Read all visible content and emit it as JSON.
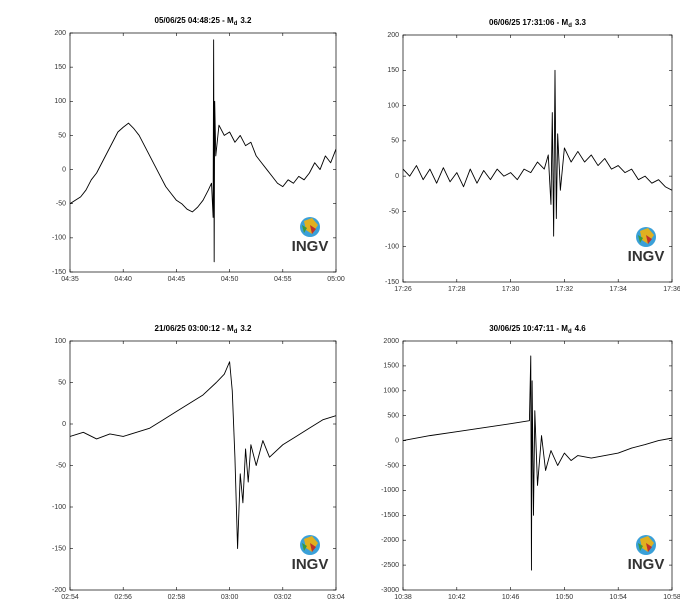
{
  "logo": "INGV",
  "chart_data": [
    {
      "type": "line",
      "title": "05/06/25 04:48:25 - M",
      "title_subscript": "d",
      "title_suffix": "3.2",
      "color": "#000000",
      "x": [
        275,
        275.5,
        276,
        276.5,
        277,
        277.5,
        278,
        278.5,
        279,
        279.5,
        280,
        280.5,
        281,
        281.5,
        282,
        282.5,
        283,
        283.5,
        284,
        284.5,
        285,
        285.5,
        286,
        286.5,
        287,
        287.5,
        288,
        288.3,
        288.45,
        288.5,
        288.55,
        288.6,
        288.7,
        289,
        289.5,
        290,
        290.5,
        291,
        291.5,
        292,
        292.5,
        293,
        293.5,
        294,
        294.5,
        295,
        295.5,
        296,
        296.5,
        297,
        297.5,
        298,
        298.5,
        299,
        299.5,
        300
      ],
      "values": [
        -50,
        -45,
        -40,
        -30,
        -15,
        -5,
        10,
        25,
        40,
        55,
        62,
        68,
        60,
        50,
        35,
        20,
        5,
        -10,
        -25,
        -35,
        -45,
        -50,
        -58,
        -62,
        -55,
        -45,
        -30,
        -20,
        -70,
        190,
        -135,
        100,
        20,
        65,
        50,
        55,
        40,
        50,
        35,
        40,
        20,
        10,
        0,
        -10,
        -20,
        -25,
        -15,
        -20,
        -10,
        -15,
        -5,
        10,
        0,
        20,
        10,
        30
      ],
      "xlim": [
        275,
        300
      ],
      "xticks": [
        {
          "value": 275,
          "label": "04:35"
        },
        {
          "value": 280,
          "label": "04:40"
        },
        {
          "value": 285,
          "label": "04:45"
        },
        {
          "value": 290,
          "label": "04:50"
        },
        {
          "value": 295,
          "label": "04:55"
        },
        {
          "value": 300,
          "label": "05:00"
        }
      ],
      "ylim": [
        -150,
        200
      ],
      "yticks": [
        -150,
        -100,
        -50,
        0,
        50,
        100,
        150,
        200
      ]
    },
    {
      "type": "line",
      "title": "06/06/25 17:31:06 - M",
      "title_subscript": "d",
      "title_suffix": "3.3",
      "color": "#000000",
      "x": [
        1046,
        1046.25,
        1046.5,
        1046.75,
        1047,
        1047.25,
        1047.5,
        1047.75,
        1048,
        1048.25,
        1048.5,
        1048.75,
        1049,
        1049.25,
        1049.5,
        1049.75,
        1050,
        1050.25,
        1050.5,
        1050.75,
        1051,
        1051.25,
        1051.4,
        1051.5,
        1051.55,
        1051.6,
        1051.65,
        1051.7,
        1051.75,
        1051.85,
        1052,
        1052.25,
        1052.5,
        1052.75,
        1053,
        1053.25,
        1053.5,
        1053.75,
        1054,
        1054.25,
        1054.5,
        1054.75,
        1055,
        1055.25,
        1055.5,
        1055.75,
        1056
      ],
      "values": [
        10,
        0,
        15,
        -5,
        10,
        -10,
        12,
        -8,
        5,
        -15,
        10,
        -10,
        8,
        -5,
        10,
        0,
        5,
        -5,
        10,
        5,
        20,
        10,
        30,
        -40,
        90,
        -85,
        150,
        -60,
        60,
        -20,
        40,
        20,
        35,
        20,
        30,
        15,
        25,
        10,
        15,
        5,
        10,
        -5,
        0,
        -10,
        -5,
        -15,
        -20
      ],
      "xlim": [
        1046,
        1056
      ],
      "xticks": [
        {
          "value": 1046,
          "label": "17:26"
        },
        {
          "value": 1048,
          "label": "17:28"
        },
        {
          "value": 1050,
          "label": "17:30"
        },
        {
          "value": 1052,
          "label": "17:32"
        },
        {
          "value": 1054,
          "label": "17:34"
        },
        {
          "value": 1056,
          "label": "17:36"
        }
      ],
      "ylim": [
        -150,
        200
      ],
      "yticks": [
        -150,
        -100,
        -50,
        0,
        50,
        100,
        150,
        200
      ]
    },
    {
      "type": "line",
      "title": "21/06/25 03:00:12 - M",
      "title_subscript": "d",
      "title_suffix": "3.2",
      "color": "#000000",
      "x": [
        174,
        174.5,
        175,
        175.5,
        176,
        176.5,
        177,
        177.5,
        178,
        178.5,
        179,
        179.5,
        179.8,
        180,
        180.1,
        180.2,
        180.3,
        180.4,
        180.5,
        180.6,
        180.7,
        180.8,
        181,
        181.25,
        181.5,
        182,
        182.5,
        183,
        183.5,
        184
      ],
      "values": [
        -15,
        -10,
        -18,
        -12,
        -15,
        -10,
        -5,
        5,
        15,
        25,
        35,
        50,
        60,
        75,
        40,
        -40,
        -150,
        -60,
        -95,
        -30,
        -70,
        -25,
        -50,
        -20,
        -40,
        -25,
        -15,
        -5,
        5,
        10
      ],
      "xlim": [
        174,
        184
      ],
      "xticks": [
        {
          "value": 174,
          "label": "02:54"
        },
        {
          "value": 176,
          "label": "02:56"
        },
        {
          "value": 178,
          "label": "02:58"
        },
        {
          "value": 180,
          "label": "03:00"
        },
        {
          "value": 182,
          "label": "03:02"
        },
        {
          "value": 184,
          "label": "03:04"
        }
      ],
      "ylim": [
        -200,
        100
      ],
      "yticks": [
        -200,
        -150,
        -100,
        -50,
        0,
        50,
        100
      ]
    },
    {
      "type": "line",
      "title": "30/06/25 10:47:11 - M",
      "title_subscript": "d",
      "title_suffix": "4.6",
      "color": "#000000",
      "x": [
        638,
        640,
        642,
        644,
        646,
        647.4,
        647.5,
        647.55,
        647.6,
        647.7,
        647.8,
        648,
        648.3,
        648.6,
        649,
        649.5,
        650,
        650.5,
        651,
        652,
        653,
        654,
        655,
        656,
        657,
        658
      ],
      "values": [
        0,
        100,
        180,
        260,
        340,
        400,
        1700,
        -2600,
        1200,
        -1500,
        600,
        -900,
        100,
        -600,
        -200,
        -500,
        -250,
        -400,
        -300,
        -350,
        -300,
        -250,
        -150,
        -80,
        0,
        50
      ],
      "xlim": [
        638,
        658
      ],
      "xticks": [
        {
          "value": 638,
          "label": "10:38"
        },
        {
          "value": 642,
          "label": "10:42"
        },
        {
          "value": 646,
          "label": "10:46"
        },
        {
          "value": 650,
          "label": "10:50"
        },
        {
          "value": 654,
          "label": "10:54"
        },
        {
          "value": 658,
          "label": "10:58"
        }
      ],
      "ylim": [
        -3000,
        2000
      ],
      "yticks": [
        -3000,
        -2500,
        -2000,
        -1500,
        -1000,
        -500,
        0,
        500,
        1000,
        1500,
        2000
      ]
    }
  ]
}
